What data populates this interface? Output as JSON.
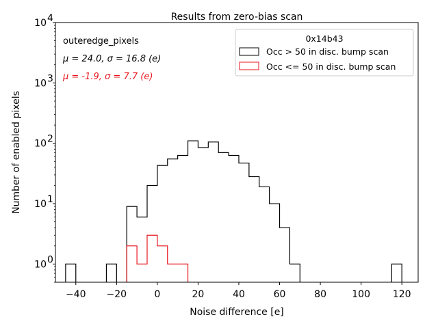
{
  "chart_data": {
    "type": "histogram",
    "title": "Results from zero-bias scan",
    "xlabel": "Noise difference [e]",
    "ylabel": "Number of enabled pixels",
    "xlim": [
      -50,
      128
    ],
    "ylim_log": [
      0.5,
      10000
    ],
    "yscale": "log",
    "x_ticks": [
      -40,
      -20,
      0,
      20,
      40,
      60,
      80,
      100,
      120
    ],
    "y_ticks": [
      {
        "value": 1,
        "base": "10",
        "exp": "0"
      },
      {
        "value": 10,
        "base": "10",
        "exp": "1"
      },
      {
        "value": 100,
        "base": "10",
        "exp": "2"
      },
      {
        "value": 1000,
        "base": "10",
        "exp": "3"
      },
      {
        "value": 10000,
        "base": "10",
        "exp": "4"
      }
    ],
    "annotations": {
      "name": "outeredge_pixels",
      "stats_black": "μ = 24.0, σ = 16.8 (e)",
      "stats_red": "μ = -1.9, σ = 7.7 (e)"
    },
    "legend": {
      "title": "0x14b43",
      "position": "top-right"
    },
    "series": [
      {
        "name": "Occ > 50 in disc. bump scan",
        "color": "#000000",
        "bin_width": 5,
        "bins": [
          {
            "x0": -45,
            "count": 1
          },
          {
            "x0": -25,
            "count": 1
          },
          {
            "x0": -15,
            "count": 9
          },
          {
            "x0": -10,
            "count": 6
          },
          {
            "x0": -5,
            "count": 20
          },
          {
            "x0": 0,
            "count": 43
          },
          {
            "x0": 5,
            "count": 55
          },
          {
            "x0": 10,
            "count": 63
          },
          {
            "x0": 15,
            "count": 110
          },
          {
            "x0": 20,
            "count": 85
          },
          {
            "x0": 25,
            "count": 105
          },
          {
            "x0": 30,
            "count": 70
          },
          {
            "x0": 35,
            "count": 63
          },
          {
            "x0": 40,
            "count": 47
          },
          {
            "x0": 45,
            "count": 28
          },
          {
            "x0": 50,
            "count": 19
          },
          {
            "x0": 55,
            "count": 10
          },
          {
            "x0": 60,
            "count": 4
          },
          {
            "x0": 65,
            "count": 1
          },
          {
            "x0": 115,
            "count": 1
          }
        ]
      },
      {
        "name": "Occ <= 50 in disc. bump scan",
        "color": "#e8141c",
        "bin_width": 5,
        "bins": [
          {
            "x0": -15,
            "count": 2
          },
          {
            "x0": -10,
            "count": 1
          },
          {
            "x0": -5,
            "count": 3
          },
          {
            "x0": 0,
            "count": 2
          },
          {
            "x0": 5,
            "count": 1
          },
          {
            "x0": 10,
            "count": 1
          }
        ]
      }
    ]
  }
}
